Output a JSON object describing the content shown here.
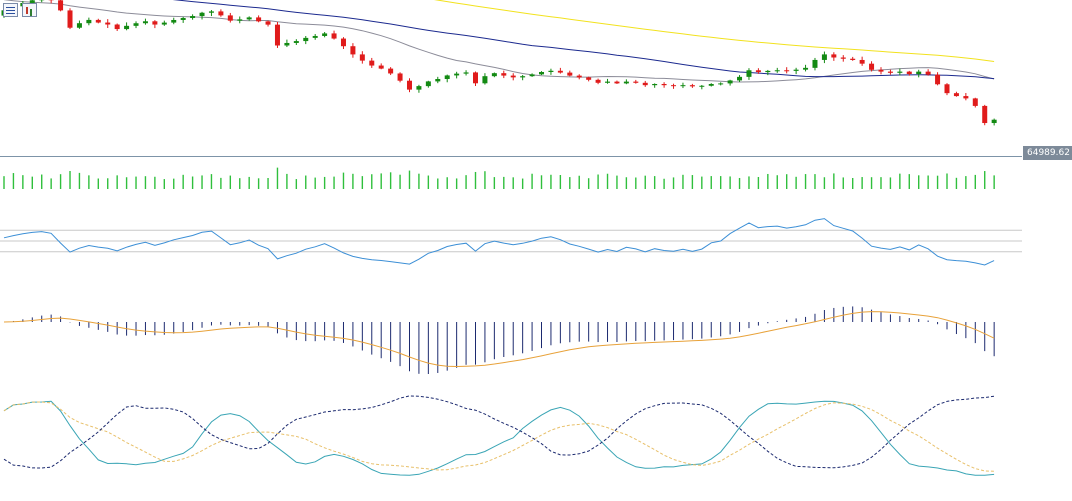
{
  "toolbar": {
    "icons": [
      "indicator-list-icon",
      "chart-type-icon"
    ]
  },
  "price_label": "64989.62",
  "colors": {
    "bull": "#138a13",
    "bear": "#e01b1b",
    "volume": "#2fbf3c",
    "ma_fast": "#8c8c99",
    "ma_mid": "#1c2a8f",
    "ma_slow": "#f2e21e",
    "rsi": "#3c8fd6",
    "macd_hist": "#1c2a6f",
    "macd_signal": "#e8a23a",
    "stoch_main": "#3aa5b5",
    "stoch_signal": "#e8c06a",
    "stoch_third": "#1c2a6f",
    "gridline": "#c8c8c8",
    "price_line": "#7d94a8"
  },
  "chart_data": [
    {
      "type": "candlestick",
      "pane": "price",
      "start": 82600,
      "seed": 7,
      "moves": [
        0.8,
        0.6,
        0.5,
        0.4,
        0.2,
        -0.2,
        -1.5,
        -2.6,
        0.7,
        0.5,
        -0.4,
        -0.3,
        -0.7,
        0.5,
        0.4,
        0.3,
        -0.5,
        0.3,
        0.4,
        0.3,
        0.3,
        0.5,
        0.2,
        -0.6,
        -0.8,
        0.2,
        0.3,
        -0.6,
        -0.5,
        -3.2,
        0.4,
        0.3,
        0.5,
        0.3,
        0.4,
        -0.8,
        -1.2,
        -1.3,
        -1.0,
        -0.8,
        -0.5,
        -0.8,
        -1.2,
        -1.5,
        0.6,
        0.8,
        0.4,
        0.6,
        0.3,
        0.2,
        -1.8,
        1.2,
        0.5,
        -0.4,
        -0.3,
        0.2,
        0.3,
        0.4,
        0.2,
        -0.3,
        -0.5,
        -0.3,
        -0.4,
        -0.5,
        0.2,
        -0.3,
        0.3,
        -0.2,
        -0.4,
        0.2,
        -0.2,
        -0.1,
        0.1,
        -0.2,
        0.1,
        0.3,
        0.1,
        0.5,
        0.6,
        1.1,
        -0.3,
        0.2,
        0.1,
        -0.1,
        0.2,
        0.3,
        1.3,
        0.9,
        -0.5,
        -0.2,
        -0.2,
        -0.6,
        -1.0,
        -0.3,
        -0.2,
        0.2,
        -0.4,
        0.4,
        -0.5,
        -1.6,
        -1.5,
        -0.5,
        -0.4,
        -1.3,
        -3.0,
        0.6
      ],
      "moving_averages": [
        {
          "name": "fast",
          "period": 20
        },
        {
          "name": "mid",
          "period": 50
        },
        {
          "name": "slow",
          "period": 100
        }
      ],
      "ylim": [
        63800,
        83800
      ],
      "last_price": 64989.62
    },
    {
      "type": "bar",
      "pane": "volume"
    },
    {
      "type": "line",
      "pane": "rsi",
      "levels": [
        70,
        50,
        30
      ],
      "ylim": [
        0,
        100
      ]
    },
    {
      "type": "bar",
      "pane": "macd",
      "signal_period": 9
    },
    {
      "type": "line",
      "pane": "stochastic",
      "ylim": [
        0,
        100
      ]
    }
  ]
}
